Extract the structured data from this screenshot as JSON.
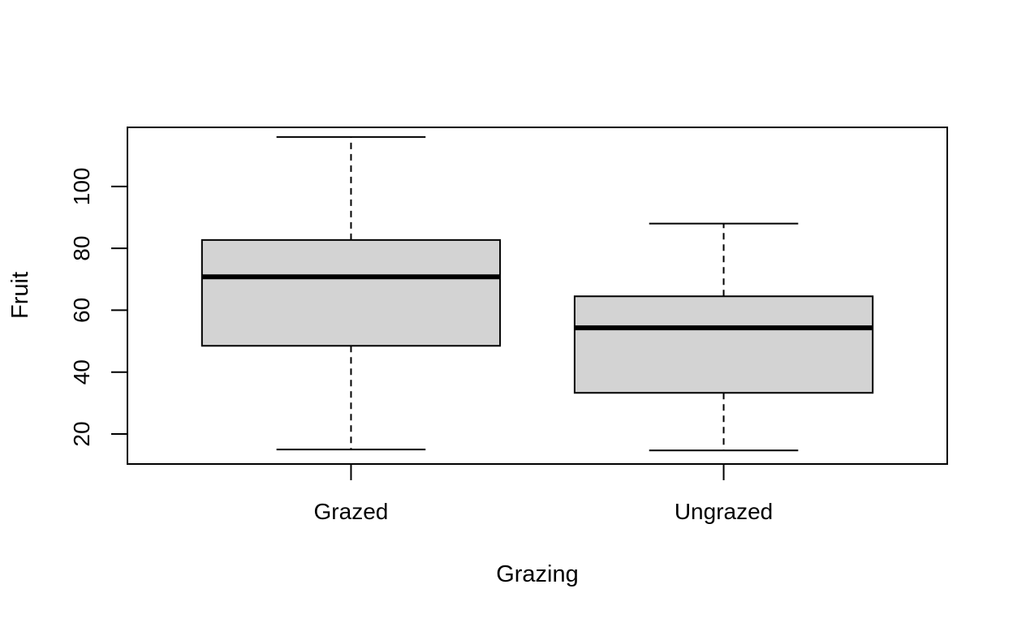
{
  "chart_data": {
    "type": "boxplot",
    "title": "",
    "xlabel": "Grazing",
    "ylabel": "Fruit",
    "ylim": [
      10.3,
      119.1
    ],
    "yticks": [
      20,
      40,
      60,
      80,
      100
    ],
    "categories": [
      "Grazed",
      "Ungrazed"
    ],
    "boxes": [
      {
        "category": "Grazed",
        "whisker_low": 15.0,
        "q1": 48.5,
        "median": 70.8,
        "q3": 82.7,
        "whisker_high": 116.0
      },
      {
        "category": "Ungrazed",
        "whisker_low": 14.7,
        "q1": 33.3,
        "median": 54.3,
        "q3": 64.5,
        "whisker_high": 88.0
      }
    ],
    "box_fill": "#d3d3d3",
    "grid": false,
    "legend": "none"
  }
}
